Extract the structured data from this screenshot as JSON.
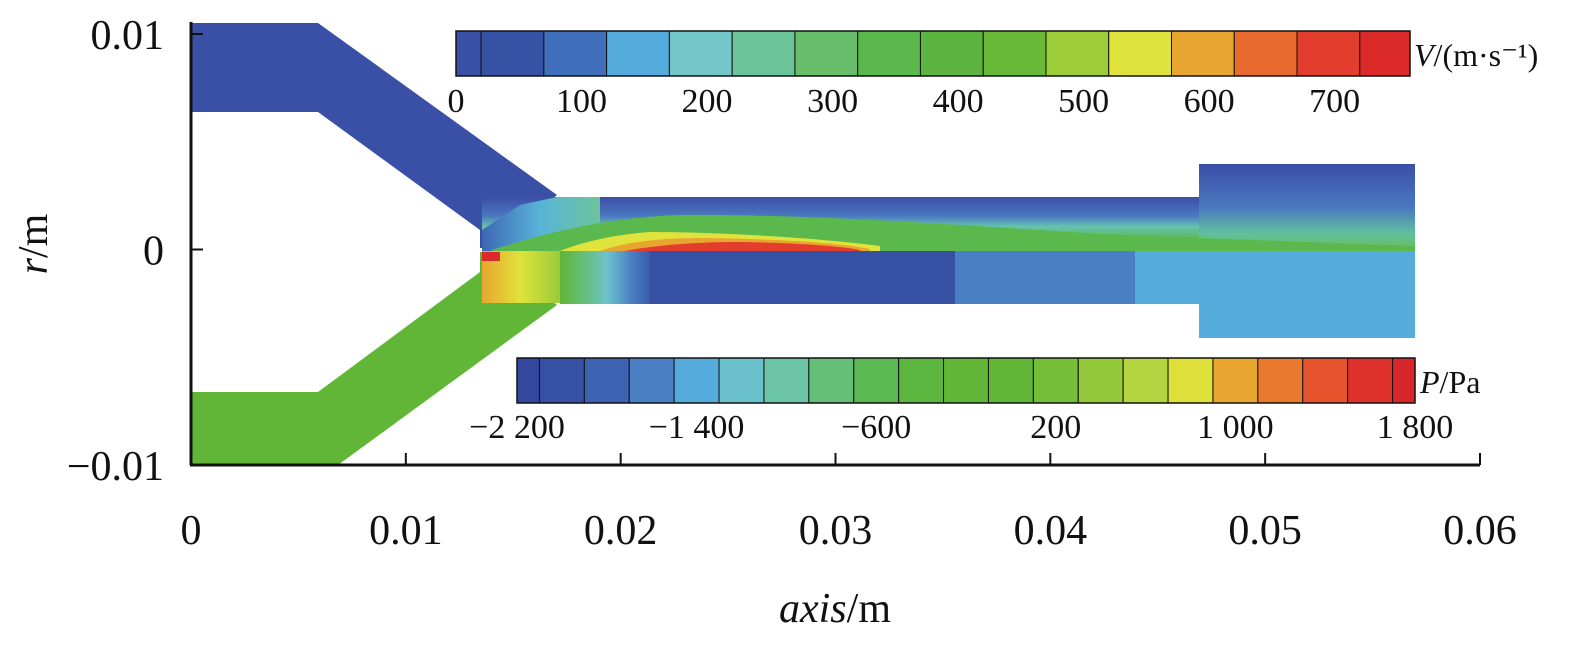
{
  "chart_data": {
    "type": "heatmap",
    "xlabel_italic": "axis",
    "xlabel_unit": "/m",
    "ylabel_italic": "r",
    "ylabel_unit": "/m",
    "xlim": [
      0,
      0.06
    ],
    "ylim": [
      -0.01,
      0.01
    ],
    "x_ticks": [
      0,
      0.01,
      0.02,
      0.03,
      0.04,
      0.05,
      0.06
    ],
    "x_tick_labels": [
      "0",
      "0.01",
      "0.02",
      "0.03",
      "0.04",
      "0.05",
      "0.06"
    ],
    "y_ticks": [
      0.01,
      0,
      -0.01
    ],
    "y_tick_labels": [
      "0.01",
      "0",
      "−0.01"
    ],
    "grid": false,
    "upper_half_field": "velocity",
    "lower_half_field": "pressure",
    "velocity_colorbar": {
      "label_italic": "V",
      "label_unit": "/(m·s⁻¹)",
      "min": 0,
      "max": 760,
      "ticks": [
        0,
        100,
        200,
        300,
        400,
        500,
        600,
        700
      ],
      "tick_labels": [
        "0",
        "100",
        "200",
        "300",
        "400",
        "500",
        "600",
        "700"
      ],
      "bin_edges": [
        0,
        20,
        70,
        120,
        170,
        220,
        270,
        320,
        370,
        420,
        470,
        520,
        570,
        620,
        670,
        720,
        760
      ],
      "colors": [
        "#3a4fa6",
        "#3552a5",
        "#3f6fbb",
        "#55acdc",
        "#72c6c8",
        "#6cc49b",
        "#67bd6a",
        "#5ab84c",
        "#5db43f",
        "#69b938",
        "#9ccc3a",
        "#dfe33b",
        "#e8a631",
        "#e86a2e",
        "#e23d2d",
        "#dc2a2a"
      ]
    },
    "pressure_colorbar": {
      "label_italic": "P",
      "label_unit": "/Pa",
      "min": -2200,
      "max": 1800,
      "ticks": [
        -2200,
        -1400,
        -600,
        200,
        1000,
        1800
      ],
      "tick_labels": [
        "−2 200",
        "−1 400",
        "−600",
        "200",
        "1 000",
        "1 800"
      ],
      "bin_edges": [
        -2200,
        -2100,
        -1900,
        -1700,
        -1500,
        -1300,
        -1100,
        -900,
        -700,
        -500,
        -300,
        -100,
        100,
        300,
        500,
        700,
        900,
        1100,
        1300,
        1500,
        1700,
        1800
      ],
      "colors": [
        "#34489e",
        "#3651a4",
        "#3c63b2",
        "#4a7fc3",
        "#55acdc",
        "#6cc2cc",
        "#6cc4a6",
        "#65bf78",
        "#5ab952",
        "#5db63f",
        "#62b637",
        "#62b637",
        "#74be38",
        "#94c93b",
        "#b4d540",
        "#e0e03a",
        "#e8a530",
        "#e8792d",
        "#e4532c",
        "#de312b",
        "#d9262b"
      ]
    },
    "upper_nozzle_velocity_ms": 20,
    "lower_nozzle_pressure_pa": 200,
    "jet_peak_velocity_ms": 740,
    "jet_peak_pressure_pa": 1800
  }
}
